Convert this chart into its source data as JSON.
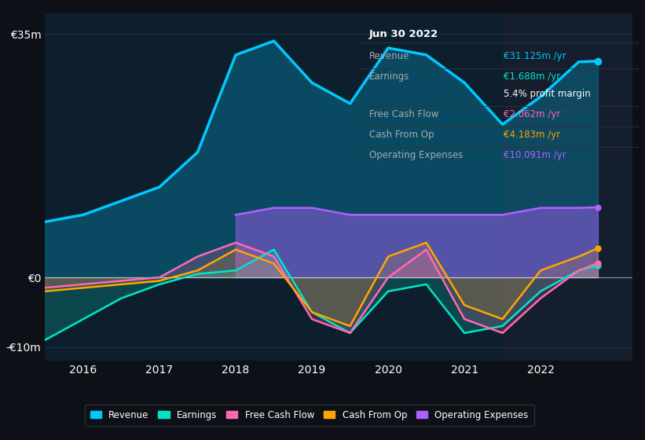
{
  "bg_color": "#0d1117",
  "plot_bg_color": "#0d1f2d",
  "highlight_bg": "#141e2d",
  "ylabel_35": "€35m",
  "ylabel_0": "€0",
  "ylabel_neg10": "-€10m",
  "xlabels": [
    "2016",
    "2017",
    "2018",
    "2019",
    "2020",
    "2021",
    "2022"
  ],
  "info_box": {
    "date": "Jun 30 2022",
    "rows": [
      {
        "label": "Revenue",
        "value": "€31.125m /yr",
        "value_color": "#00c8ff"
      },
      {
        "label": "Earnings",
        "value": "€1.688m /yr",
        "value_color": "#00e5c8"
      },
      {
        "label": "",
        "value": "5.4% profit margin",
        "value_color": "#ffffff"
      },
      {
        "label": "Free Cash Flow",
        "value": "€2.062m /yr",
        "value_color": "#ff69b4"
      },
      {
        "label": "Cash From Op",
        "value": "€4.183m /yr",
        "value_color": "#ffa500"
      },
      {
        "label": "Operating Expenses",
        "value": "€10.091m /yr",
        "value_color": "#b060ff"
      }
    ]
  },
  "x": [
    2015.5,
    2016.0,
    2016.5,
    2017.0,
    2017.5,
    2018.0,
    2018.5,
    2019.0,
    2019.5,
    2020.0,
    2020.5,
    2021.0,
    2021.5,
    2022.0,
    2022.5,
    2022.75
  ],
  "revenue": [
    8,
    9,
    11,
    13,
    18,
    32,
    34,
    28,
    25,
    33,
    32,
    28,
    22,
    26,
    31,
    31.125
  ],
  "earnings": [
    -9,
    -6,
    -3,
    -1,
    0.5,
    1,
    4,
    -5,
    -8,
    -2,
    -1,
    -8,
    -7,
    -2,
    1,
    1.688
  ],
  "free_cash": [
    -1.5,
    -1,
    -0.5,
    0,
    3,
    5,
    3,
    -6,
    -8,
    0,
    4,
    -6,
    -8,
    -3,
    1,
    2.062
  ],
  "cash_from_op": [
    -2,
    -1.5,
    -1,
    -0.5,
    1,
    4,
    2,
    -5,
    -7,
    3,
    5,
    -4,
    -6,
    1,
    3,
    4.183
  ],
  "op_expenses": [
    0,
    0,
    0,
    0,
    0,
    9,
    10,
    10,
    9,
    9,
    9,
    9,
    9,
    10,
    10,
    10.091
  ],
  "revenue_color": "#00c8ff",
  "earnings_color": "#00e5c8",
  "free_cash_color": "#ff69b4",
  "cash_from_op_color": "#ffa500",
  "op_expenses_color": "#b060ff",
  "ylim": [
    -12,
    38
  ],
  "xlim": [
    2015.5,
    2023.2
  ],
  "highlight_x_start": 2021.5,
  "legend_items": [
    {
      "label": "Revenue",
      "color": "#00c8ff"
    },
    {
      "label": "Earnings",
      "color": "#00e5c8"
    },
    {
      "label": "Free Cash Flow",
      "color": "#ff69b4"
    },
    {
      "label": "Cash From Op",
      "color": "#ffa500"
    },
    {
      "label": "Operating Expenses",
      "color": "#b060ff"
    }
  ]
}
